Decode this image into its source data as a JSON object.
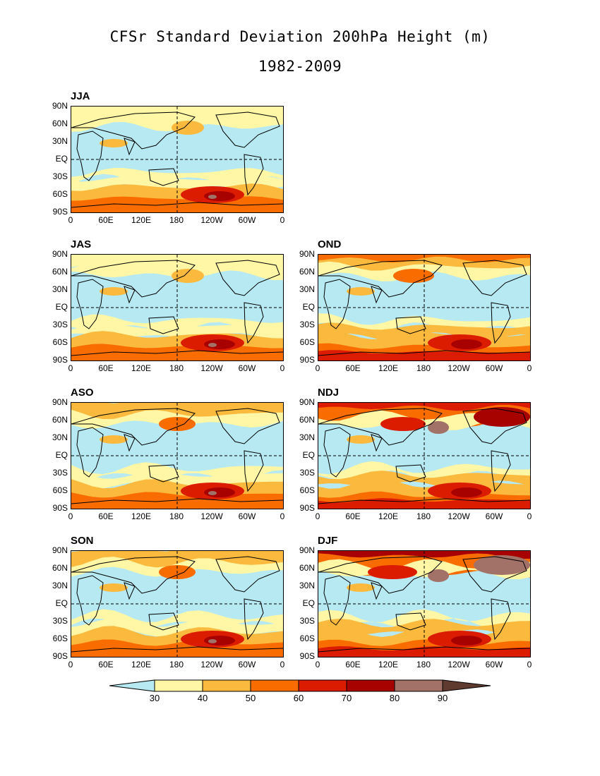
{
  "title": "CFSr Standard Deviation 200hPa Height (m)",
  "subtitle": "1982-2009",
  "yticks": [
    "90N",
    "60N",
    "30N",
    "EQ",
    "30S",
    "60S",
    "90S"
  ],
  "xticks": [
    "0",
    "60E",
    "120E",
    "180",
    "120W",
    "60W",
    "0"
  ],
  "colorbar": {
    "levels": [
      "30",
      "40",
      "50",
      "60",
      "70",
      "80",
      "90"
    ],
    "colors": [
      "#b6e9f2",
      "#fff6a6",
      "#fbb93e",
      "#f96d00",
      "#dc1c00",
      "#a70200",
      "#a27167",
      "#5e3a2f"
    ]
  },
  "panels": [
    {
      "label": "JJA",
      "intensity": 1,
      "col": 0,
      "row": 0
    },
    {
      "label": "JAS",
      "intensity": 1,
      "col": 0,
      "row": 1
    },
    {
      "label": "OND",
      "intensity": 3,
      "col": 1,
      "row": 1
    },
    {
      "label": "ASO",
      "intensity": 2,
      "col": 0,
      "row": 2
    },
    {
      "label": "NDJ",
      "intensity": 4,
      "col": 1,
      "row": 2
    },
    {
      "label": "SON",
      "intensity": 2,
      "col": 0,
      "row": 3
    },
    {
      "label": "DJF",
      "intensity": 5,
      "col": 1,
      "row": 3
    }
  ]
}
